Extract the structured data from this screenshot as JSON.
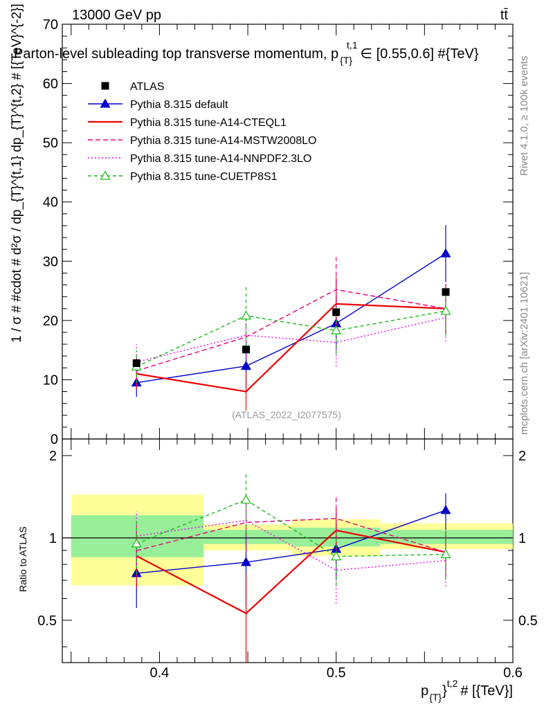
{
  "header": {
    "energy_label": "13000 GeV pp",
    "process_label": "tt̄"
  },
  "side_labels": {
    "rivet": "Rivet 4.1.0, ≥ 100k events",
    "mcplots": "mcplots.cern.ch [arXiv:2401.10621]"
  },
  "chart_data": {
    "type": "line",
    "title": "Parton-level subleading top transverse momentum, p_{T}^{t,1} ∈ [0.55,0.6] #{TeV}",
    "title_display": "Parton-level subleading top transverse momentum, p",
    "title_sub": "{T}",
    "title_sup": "t,1",
    "title_tail": "∈ [0.55,0.6] #{TeV}",
    "watermark": "(ATLAS_2022_I2077575)",
    "ylabel": "1 / σ # #cdot # d²σ / dp_{T}^{t,1} dp_{T}^{t,2} # [{TeV}^{-2}]",
    "xlabel": "p_{T}^{t,2} # [{TeV}]",
    "xlabel_main": "p",
    "xlabel_sub": "{T}",
    "xlabel_sup": "}",
    "xlabel_sup2": "t,2",
    "xlabel_tail": "# [{TeV}]",
    "ratio_ylabel": "Ratio to ATLAS",
    "xlim": [
      0.345,
      0.6
    ],
    "ylim": [
      0,
      70
    ],
    "ratio_ylim": [
      0.35,
      2.3
    ],
    "x_ticks": [
      "0.4",
      "0.5",
      "0.6"
    ],
    "y_ticks": [
      "0",
      "10",
      "20",
      "30",
      "40",
      "50",
      "60",
      "70"
    ],
    "ratio_ticks": [
      "0.5",
      "1",
      "2"
    ],
    "bins": [
      {
        "lo": 0.35,
        "hi": 0.425,
        "x": 0.387
      },
      {
        "lo": 0.425,
        "hi": 0.475,
        "x": 0.449
      },
      {
        "lo": 0.475,
        "hi": 0.525,
        "x": 0.5
      },
      {
        "lo": 0.525,
        "hi": 0.6,
        "x": 0.562
      }
    ],
    "data": {
      "name": "ATLAS",
      "values": [
        12.8,
        15.1,
        21.4,
        24.8
      ],
      "band_inner": [
        [
          0.85,
          1.21
        ],
        [
          0.95,
          1.07
        ],
        [
          0.93,
          1.09
        ],
        [
          0.95,
          1.07
        ]
      ],
      "band_outer": [
        [
          0.67,
          1.44
        ],
        [
          0.9,
          1.12
        ],
        [
          0.86,
          1.17
        ],
        [
          0.91,
          1.13
        ]
      ]
    },
    "series": [
      {
        "name": "Pythia 8.315 default",
        "color": "#0000cc",
        "dash": "",
        "marker": "triangle",
        "values": [
          9.5,
          12.3,
          19.5,
          31.3
        ],
        "errors": [
          2.4,
          3.8,
          4.5,
          4.8
        ]
      },
      {
        "name": "Pythia 8.315 tune-A14-CTEQL1",
        "color": "#ee0000",
        "dash": "",
        "marker": "none",
        "values": [
          11.0,
          8.0,
          22.8,
          22.0
        ],
        "errors": [
          2.6,
          3.2,
          4.5,
          4.2
        ]
      },
      {
        "name": "Pythia 8.315 tune-A14-MSTW2008LO",
        "color": "#e8007a",
        "dash": "7,4",
        "marker": "none",
        "values": [
          11.5,
          17.2,
          25.2,
          22.0
        ],
        "errors": [
          2.7,
          3.8,
          5.5,
          4.2
        ]
      },
      {
        "name": "Pythia 8.315 tune-A14-NNPDF2.3LO",
        "color": "#ee00ee",
        "dash": "2,3",
        "marker": "none",
        "values": [
          13.0,
          17.5,
          16.3,
          20.5
        ],
        "errors": [
          3.0,
          4.0,
          4.0,
          4.0
        ]
      },
      {
        "name": "Pythia 8.315 tune-CUETP8S1",
        "color": "#11bb11",
        "dash": "5,4",
        "marker": "open-triangle",
        "values": [
          12.2,
          20.8,
          18.3,
          21.6
        ],
        "errors": [
          2.8,
          5.2,
          4.0,
          4.2
        ]
      }
    ]
  }
}
